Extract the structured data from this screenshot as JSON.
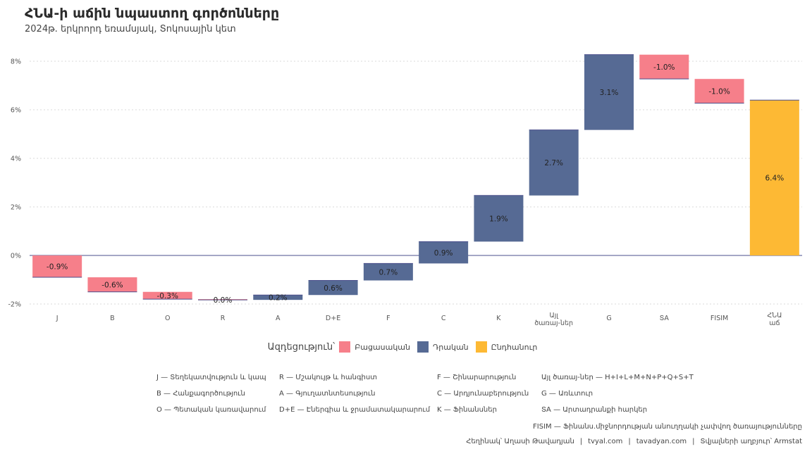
{
  "title": "ՀՆԱ-ի աճին նպաստող գործոնները",
  "subtitle": "2024թ. երկրորդ եռամսյակ, Տոկոսային կետ",
  "colors": {
    "negative": "#F67F8A",
    "positive": "#566A94",
    "total": "#FDB934",
    "grid": "#d9d9d9",
    "zero": "#4b4f8c"
  },
  "chart_data": {
    "type": "waterfall",
    "categories": [
      "J",
      "B",
      "O",
      "R",
      "A",
      "D+E",
      "F",
      "C",
      "K",
      "Այլ\nծառայ-ներ",
      "G",
      "ՏA",
      "FISIM",
      "ՀՆԱ\nաճ"
    ],
    "values": [
      -0.9,
      -0.6,
      -0.3,
      -0.03,
      0.2,
      0.6,
      0.7,
      0.9,
      1.9,
      2.7,
      3.1,
      -1.0,
      -1.0,
      6.4
    ],
    "labels": [
      "-0.9%",
      "-0.6%",
      "-0.3%",
      "0.0%",
      "0.2%",
      "0.6%",
      "0.7%",
      "0.9%",
      "1.9%",
      "2.7%",
      "3.1%",
      "-1.0%",
      "-1.0%",
      "6.4%"
    ],
    "kinds": [
      "negative",
      "negative",
      "negative",
      "negative",
      "positive",
      "positive",
      "positive",
      "positive",
      "positive",
      "positive",
      "positive",
      "negative",
      "negative",
      "total"
    ],
    "yticks": [
      -2,
      0,
      2,
      4,
      6,
      8
    ],
    "ytick_labels": [
      "-2%",
      "0%",
      "2%",
      "4%",
      "6%",
      "8%"
    ],
    "ylim": [
      -2.2,
      8.6
    ],
    "grid": true
  },
  "legend": {
    "title": "Ազդեցություն՝",
    "items": [
      {
        "label": "Բացասական",
        "kind": "negative"
      },
      {
        "label": "Դրական",
        "kind": "positive"
      },
      {
        "label": "Ընդհանուր",
        "kind": "total"
      }
    ]
  },
  "abbreviations": {
    "col1": [
      "J — Տեղեկատվություն և կապ",
      "B — Հանքագործություն",
      "O — Պետական կառավարում"
    ],
    "col2": [
      "R — Մշակույթ և հանգիստ",
      "A — Գյուղատնտեսություն",
      "D+E — Էներգիա և ջրամատակարարում"
    ],
    "col3": [
      "F — Շինարարություն",
      "C — Արդյունաբերություն",
      "K — Ֆինանսներ"
    ],
    "col4": [
      "Այլ ծառայ-ներ — H+I+L+M+N+P+Q+S+T",
      "G — Առևտուր",
      "ՏA — Արտադրանքի հարկեր"
    ],
    "fisim": "FISIM — Ֆինանս.միջնորդության անուղղակի չափվող ծառայությունները"
  },
  "caption": {
    "author": "Հեղինակ՝ Աղասի Թավադյան",
    "site1": "tvyal.com",
    "site2": "tavadyan.com",
    "source": "Տվյալների աղբյուր՝ Armstat",
    "sep": "|"
  }
}
